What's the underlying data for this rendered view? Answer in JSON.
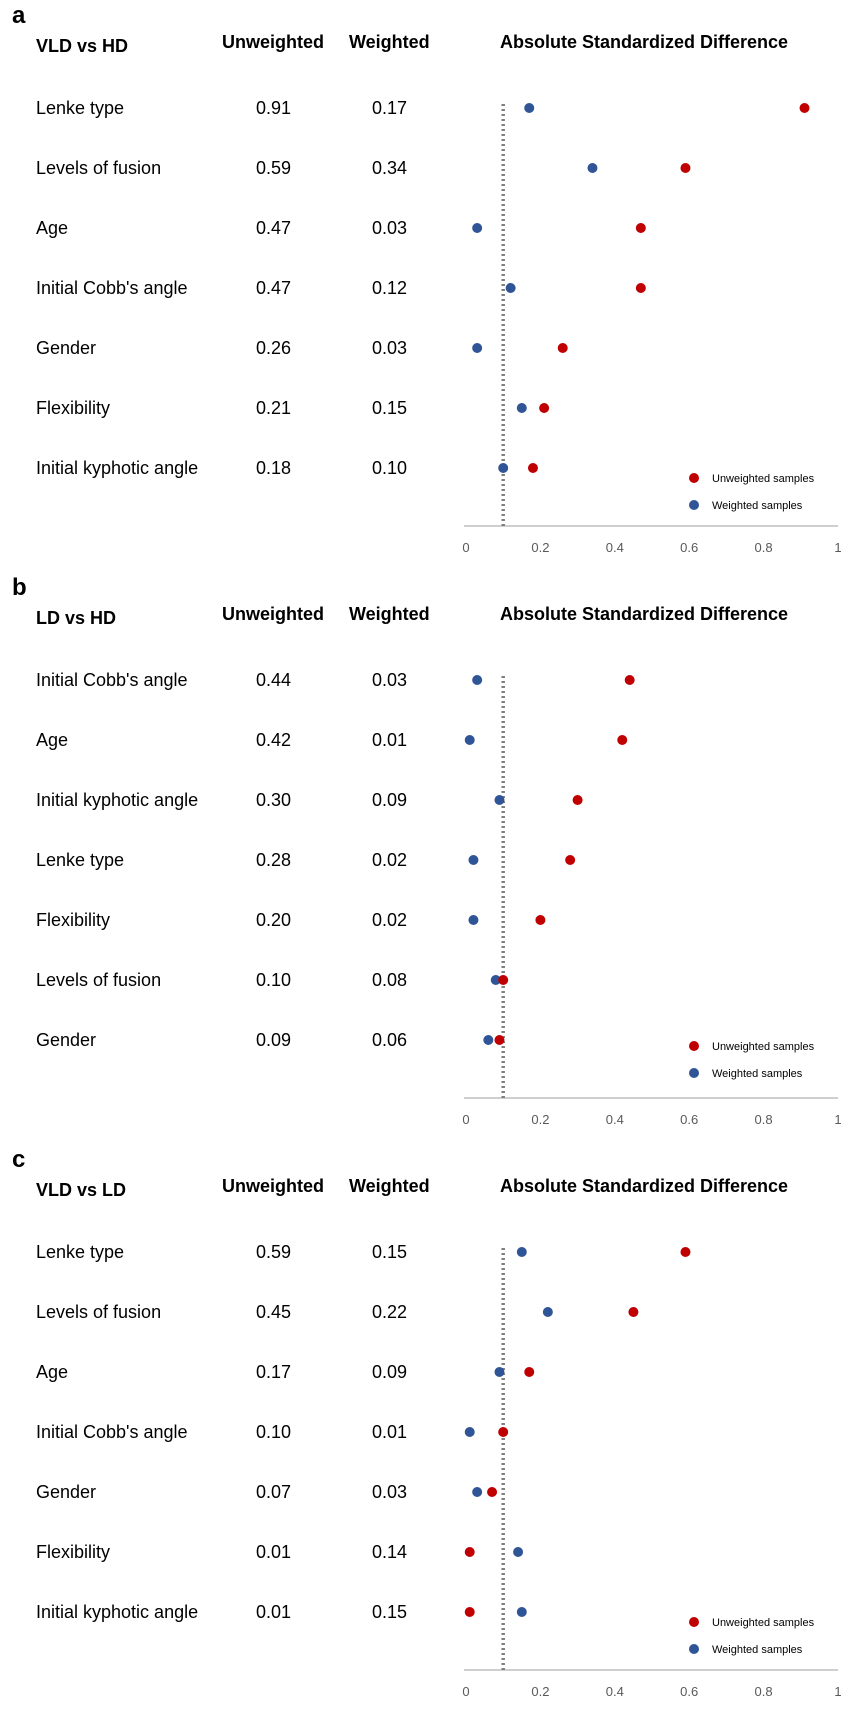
{
  "panels": [
    {
      "letter": "a",
      "comparison": "VLD vs HD",
      "col_unweighted": "Unweighted",
      "col_weighted": "Weighted",
      "col_plot": "Absolute Standardized Difference",
      "rows": [
        {
          "label": "Lenke type",
          "unweighted": "0.91",
          "weighted": "0.17"
        },
        {
          "label": "Levels of fusion",
          "unweighted": "0.59",
          "weighted": "0.34"
        },
        {
          "label": "Age",
          "unweighted": "0.47",
          "weighted": "0.03"
        },
        {
          "label": "Initial Cobb's angle",
          "unweighted": "0.47",
          "weighted": "0.12"
        },
        {
          "label": "Gender",
          "unweighted": "0.26",
          "weighted": "0.03"
        },
        {
          "label": "Flexibility",
          "unweighted": "0.21",
          "weighted": "0.15"
        },
        {
          "label": "Initial kyphotic angle",
          "unweighted": "0.18",
          "weighted": "0.10"
        }
      ]
    },
    {
      "letter": "b",
      "comparison": "LD vs HD",
      "col_unweighted": "Unweighted",
      "col_weighted": "Weighted",
      "col_plot": "Absolute Standardized Difference",
      "rows": [
        {
          "label": "Initial Cobb's angle",
          "unweighted": "0.44",
          "weighted": "0.03"
        },
        {
          "label": "Age",
          "unweighted": "0.42",
          "weighted": "0.01"
        },
        {
          "label": "Initial kyphotic angle",
          "unweighted": "0.30",
          "weighted": "0.09"
        },
        {
          "label": "Lenke type",
          "unweighted": "0.28",
          "weighted": "0.02"
        },
        {
          "label": "Flexibility",
          "unweighted": "0.20",
          "weighted": "0.02"
        },
        {
          "label": "Levels of fusion",
          "unweighted": "0.10",
          "weighted": "0.08"
        },
        {
          "label": "Gender",
          "unweighted": "0.09",
          "weighted": "0.06"
        }
      ]
    },
    {
      "letter": "c",
      "comparison": "VLD vs LD",
      "col_unweighted": "Unweighted",
      "col_weighted": "Weighted",
      "col_plot": "Absolute Standardized Difference",
      "rows": [
        {
          "label": "Lenke type",
          "unweighted": "0.59",
          "weighted": "0.15"
        },
        {
          "label": "Levels of fusion",
          "unweighted": "0.45",
          "weighted": "0.22"
        },
        {
          "label": "Age",
          "unweighted": "0.17",
          "weighted": "0.09"
        },
        {
          "label": "Initial Cobb's angle",
          "unweighted": "0.10",
          "weighted": "0.01"
        },
        {
          "label": "Gender",
          "unweighted": "0.07",
          "weighted": "0.03"
        },
        {
          "label": "Flexibility",
          "unweighted": "0.01",
          "weighted": "0.14"
        },
        {
          "label": "Initial kyphotic angle",
          "unweighted": "0.01",
          "weighted": "0.15"
        }
      ]
    }
  ],
  "chart_data": [
    {
      "type": "scatter",
      "title": "Absolute Standardized Difference",
      "categories": [
        "Lenke type",
        "Levels of fusion",
        "Age",
        "Initial Cobb's angle",
        "Gender",
        "Flexibility",
        "Initial kyphotic angle"
      ],
      "series": [
        {
          "name": "Unweighted samples",
          "values": [
            0.91,
            0.59,
            0.47,
            0.47,
            0.26,
            0.21,
            0.18
          ]
        },
        {
          "name": "Weighted samples",
          "values": [
            0.17,
            0.34,
            0.03,
            0.12,
            0.03,
            0.15,
            0.1
          ]
        }
      ],
      "xlim": [
        0,
        1
      ],
      "xticks": [
        "0",
        "0.2",
        "0.4",
        "0.6",
        "0.8",
        "1"
      ],
      "reference_line": 0.1,
      "grid": false,
      "legend_position": "bottom-right"
    },
    {
      "type": "scatter",
      "title": "Absolute Standardized Difference",
      "categories": [
        "Initial Cobb's angle",
        "Age",
        "Initial kyphotic angle",
        "Lenke type",
        "Flexibility",
        "Levels of fusion",
        "Gender"
      ],
      "series": [
        {
          "name": "Unweighted samples",
          "values": [
            0.44,
            0.42,
            0.3,
            0.28,
            0.2,
            0.1,
            0.09
          ]
        },
        {
          "name": "Weighted samples",
          "values": [
            0.03,
            0.01,
            0.09,
            0.02,
            0.02,
            0.08,
            0.06
          ]
        }
      ],
      "xlim": [
        0,
        1
      ],
      "xticks": [
        "0",
        "0.2",
        "0.4",
        "0.6",
        "0.8",
        "1"
      ],
      "reference_line": 0.1,
      "grid": false,
      "legend_position": "bottom-right"
    },
    {
      "type": "scatter",
      "title": "Absolute Standardized Difference",
      "categories": [
        "Lenke type",
        "Levels of fusion",
        "Age",
        "Initial Cobb's angle",
        "Gender",
        "Flexibility",
        "Initial kyphotic angle"
      ],
      "series": [
        {
          "name": "Unweighted samples",
          "values": [
            0.59,
            0.45,
            0.17,
            0.1,
            0.07,
            0.01,
            0.01
          ]
        },
        {
          "name": "Weighted samples",
          "values": [
            0.15,
            0.22,
            0.09,
            0.01,
            0.03,
            0.14,
            0.15
          ]
        }
      ],
      "xlim": [
        0,
        1
      ],
      "xticks": [
        "0",
        "0.2",
        "0.4",
        "0.6",
        "0.8",
        "1"
      ],
      "reference_line": 0.1,
      "grid": false,
      "legend_position": "bottom-right"
    }
  ],
  "colors": {
    "unweighted": "#c00000",
    "weighted": "#2f5597",
    "reference_line": "#808080",
    "axis": "#bfbfbf"
  }
}
